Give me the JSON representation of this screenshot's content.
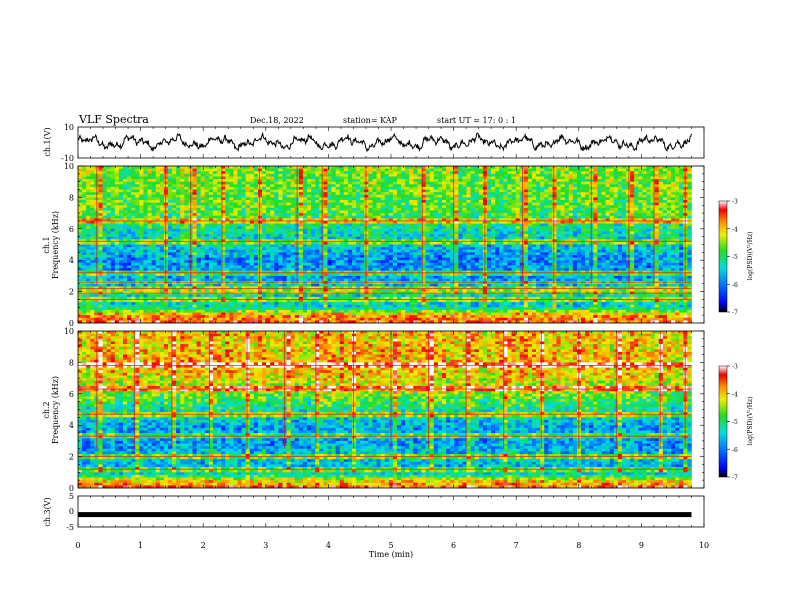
{
  "header": {
    "title": "VLF Spectra",
    "date": "Dec.18, 2022",
    "station": "station= KAP",
    "start": "start  UT  =   17: 0  : 1"
  },
  "chart_data": [
    {
      "type": "line",
      "panel": "ch1-waveform",
      "ylabel": "ch.1(V)",
      "ylim": [
        -10,
        10
      ],
      "ytick_labels": [
        "10",
        "-10"
      ],
      "xlim": [
        0,
        10
      ],
      "x_end": 9.8,
      "y_center": 0,
      "y_amplitude": 4.5
    },
    {
      "type": "heatmap",
      "panel": "ch1-spectrogram",
      "ylabel": "Frequency  (kHz)",
      "channel_label": "ch.1",
      "ylim": [
        0,
        10
      ],
      "ytick_labels": [
        "0",
        "2",
        "4",
        "6",
        "8",
        "10"
      ],
      "xlim": [
        0,
        10
      ],
      "x_end": 9.8,
      "colorbar": {
        "label": "log(PSD)(V²/Hz)",
        "range": [
          -7,
          -3
        ],
        "tick_labels": [
          "-3",
          "-4",
          "-5",
          "-6",
          "-7"
        ]
      },
      "profile_freq_khz": [
        0,
        0.5,
        1,
        2,
        3,
        4,
        5,
        6,
        7,
        8,
        10
      ],
      "profile_log_psd": [
        -3.5,
        -3.8,
        -5.4,
        -5.4,
        -5.8,
        -5.9,
        -5.5,
        -5.2,
        -4.8,
        -4.7,
        -4.6
      ],
      "bands_khz": [
        6.5,
        5.2,
        3.2,
        2.6,
        2.2,
        1.9,
        1.5
      ],
      "burst_times_min": [
        0.3,
        1.4,
        1.8,
        2.3,
        2.9,
        3.5,
        3.9,
        4.6,
        5.5,
        6.0,
        6.5,
        7.1,
        7.6,
        8.2,
        8.8,
        9.2,
        9.7
      ]
    },
    {
      "type": "heatmap",
      "panel": "ch2-spectrogram",
      "ylabel": "Frequency  (kHz)",
      "channel_label": "ch.2",
      "ylim": [
        0,
        10
      ],
      "ytick_labels": [
        "0",
        "2",
        "4",
        "6",
        "8",
        "10"
      ],
      "xlim": [
        0,
        10
      ],
      "x_end": 9.8,
      "colorbar": {
        "label": "log(PSD)(V²/Hz)",
        "range": [
          -7,
          -3
        ],
        "tick_labels": [
          "-3",
          "-4",
          "-5",
          "-6",
          "-7"
        ]
      },
      "profile_freq_khz": [
        0,
        0.5,
        1,
        2,
        3,
        4,
        5,
        6,
        7,
        8,
        10
      ],
      "profile_log_psd": [
        -3.5,
        -4.2,
        -5.6,
        -5.6,
        -5.8,
        -5.7,
        -5.2,
        -4.6,
        -4.2,
        -4.0,
        -4.1
      ],
      "bands_khz": [
        7.8,
        6.3,
        4.7,
        3.3,
        2.0,
        1.2
      ],
      "burst_times_min": [
        0.3,
        0.9,
        1.5,
        2.1,
        2.7,
        3.3,
        3.8,
        4.4,
        5.0,
        5.6,
        6.2,
        6.8,
        7.4,
        8.0,
        8.6,
        9.3,
        9.7
      ]
    },
    {
      "type": "line",
      "panel": "ch3-signal",
      "ylabel": "ch.3(V)",
      "xlabel": "Time  (min)",
      "ylim": [
        -5,
        5
      ],
      "ytick_labels": [
        "5",
        "0",
        "-5"
      ],
      "xlim": [
        0,
        10
      ],
      "x_end": 9.8,
      "y_level": -1.0,
      "xtick_labels": [
        "0",
        "1",
        "2",
        "3",
        "4",
        "5",
        "6",
        "7",
        "8",
        "9",
        "10"
      ]
    }
  ]
}
